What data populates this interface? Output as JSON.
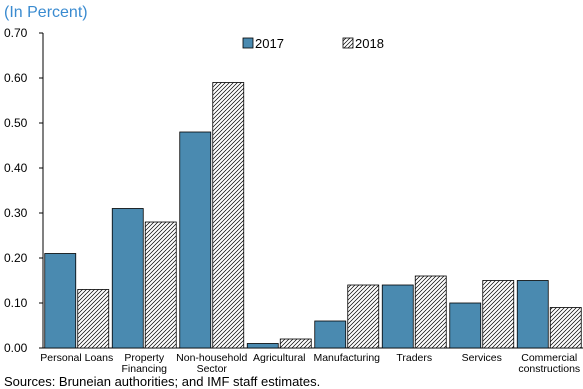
{
  "header": {
    "subtitle": "(In Percent)"
  },
  "footer": {
    "source": "Sources: Bruneian authorities; and IMF staff estimates."
  },
  "colors": {
    "series_2017": "#4a8ab0",
    "series_2018_hatch": "#000000",
    "subtitle": "#3a8bd0"
  },
  "chart_data": {
    "type": "bar",
    "categories": [
      "Personal Loans",
      "Property Financing",
      "Non-household Sector",
      "Agricultural",
      "Manufacturing",
      "Traders",
      "Services",
      "Commercial constructions"
    ],
    "category_lines": [
      [
        "Personal Loans"
      ],
      [
        "Property",
        "Financing"
      ],
      [
        "Non-household",
        "Sector"
      ],
      [
        "Agricultural"
      ],
      [
        "Manufacturing"
      ],
      [
        "Traders"
      ],
      [
        "Services"
      ],
      [
        "Commercial",
        "constructions"
      ]
    ],
    "series": [
      {
        "name": "2017",
        "values": [
          0.21,
          0.31,
          0.48,
          0.01,
          0.06,
          0.14,
          0.1,
          0.15
        ]
      },
      {
        "name": "2018",
        "values": [
          0.13,
          0.28,
          0.59,
          0.02,
          0.14,
          0.16,
          0.15,
          0.09
        ]
      }
    ],
    "ylim": [
      0,
      0.7
    ],
    "yticks": [
      "0.00",
      "0.10",
      "0.20",
      "0.30",
      "0.40",
      "0.50",
      "0.60",
      "0.70"
    ],
    "grid": false,
    "legend_position": "top-center"
  }
}
